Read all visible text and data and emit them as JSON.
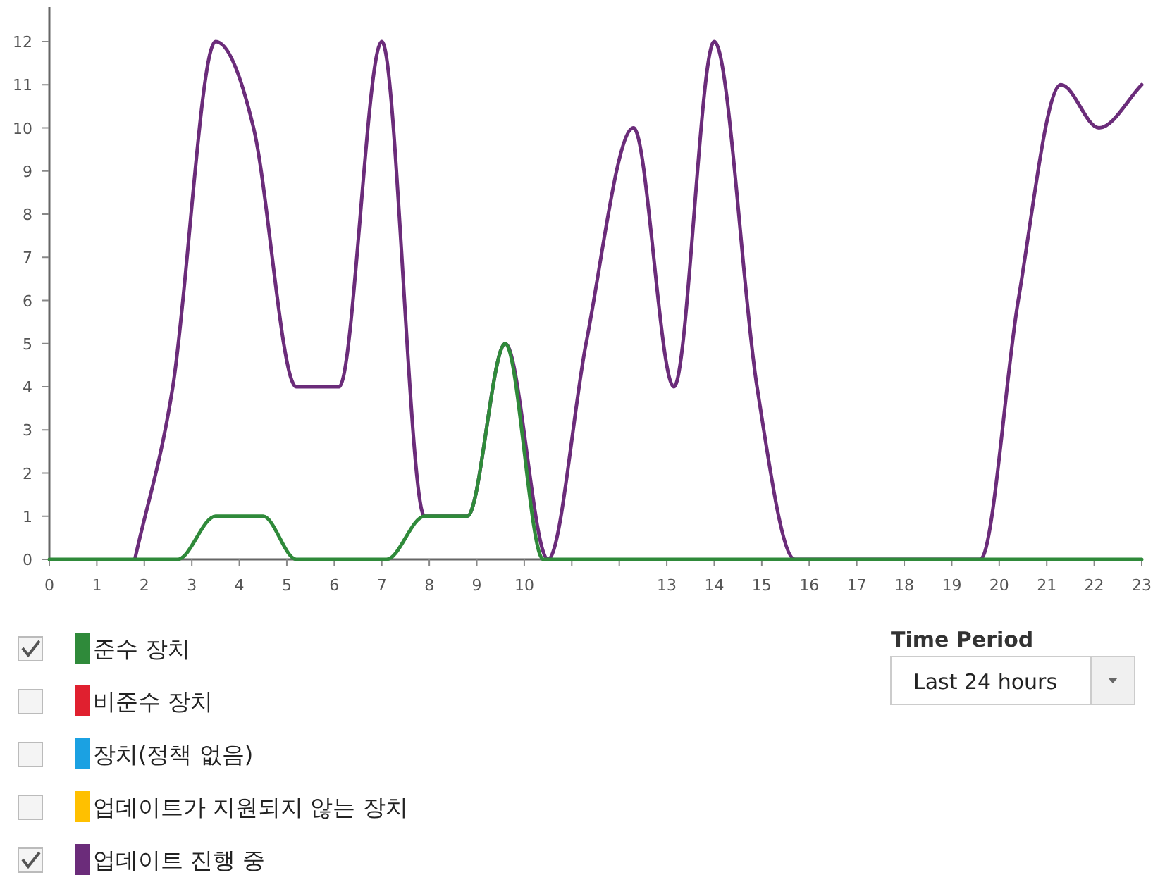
{
  "chart_data": {
    "type": "line",
    "xlim": [
      0,
      23
    ],
    "ylim": [
      0,
      12.8
    ],
    "xticks": [
      0,
      1,
      2,
      3,
      4,
      5,
      6,
      7,
      8,
      9,
      10,
      {
        "value": 11,
        "label": null
      },
      {
        "value": 12,
        "label": null
      },
      13,
      14,
      15,
      16,
      17,
      18,
      19,
      20,
      21,
      22,
      23
    ],
    "yticks": [
      0,
      1,
      2,
      3,
      4,
      5,
      6,
      7,
      8,
      9,
      10,
      11,
      12
    ],
    "grid": false,
    "legend": "bottom",
    "marker": "none",
    "line_style": "solid",
    "series": [
      {
        "name": "준수 장치",
        "color": "#2f8a3a",
        "x": [
          0,
          2.7,
          3.5,
          4.5,
          5.2,
          7.1,
          7.9,
          8.8,
          9.6,
          10.4,
          23
        ],
        "values": [
          0,
          0,
          1,
          1,
          0,
          0,
          1,
          1,
          5,
          0,
          0
        ]
      },
      {
        "name": "비준수 장치",
        "color": "#e0202f"
      },
      {
        "name": "장치(정책 없음)",
        "color": "#1ba1e2"
      },
      {
        "name": "업데이트가 지원되지 않는 장치",
        "color": "#ffc000"
      },
      {
        "name": "업데이트 진행 중",
        "color": "#6b2c7a",
        "x": [
          1.8,
          2.6,
          3.5,
          4.3,
          5.2,
          6.1,
          7.0,
          7.9,
          8.8,
          9.6,
          10.5,
          11.3,
          12.3,
          13.15,
          14.0,
          14.9,
          15.7,
          19.6,
          20.4,
          21.3,
          22.1,
          23.0
        ],
        "values": [
          0,
          4,
          12,
          10,
          4,
          4,
          12,
          1,
          1,
          5,
          0,
          5,
          10,
          4,
          12,
          4,
          0,
          0,
          6,
          11,
          10,
          11
        ]
      }
    ],
    "annotations": [
      "Time Period",
      "Last 24 hours"
    ]
  }
}
